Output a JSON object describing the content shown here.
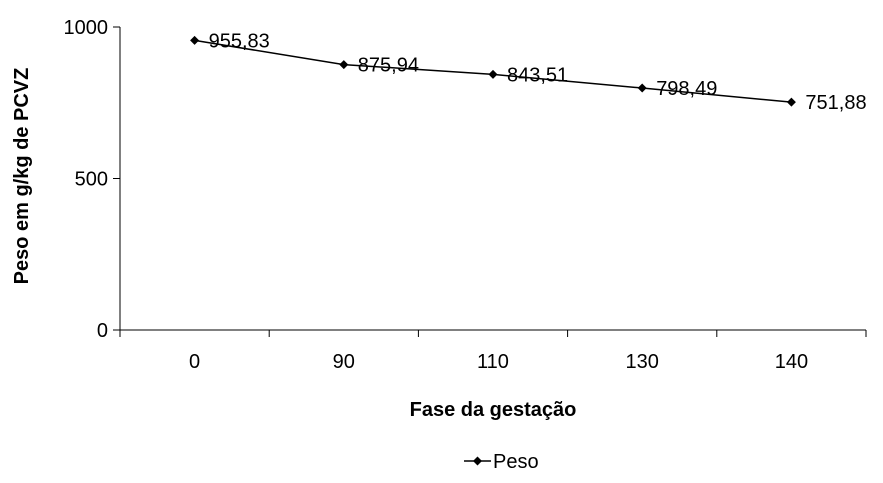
{
  "chart_data": {
    "type": "line",
    "categories": [
      "0",
      "90",
      "110",
      "130",
      "140"
    ],
    "series": [
      {
        "name": "Peso",
        "values": [
          955.83,
          875.94,
          843.51,
          798.49,
          751.88
        ]
      }
    ],
    "data_labels": [
      "955,83",
      "875,94",
      "843,51",
      "798,49",
      "751,88"
    ],
    "xlabel": "Fase da gestação",
    "ylabel": "Peso em g/kg de PCVZ",
    "ylim": [
      0,
      1000
    ],
    "yticks": [
      0,
      500,
      1000
    ],
    "ytick_labels": [
      "0",
      "500",
      "1000"
    ],
    "grid": false,
    "legend_position": "bottom",
    "line_color": "#000000"
  }
}
